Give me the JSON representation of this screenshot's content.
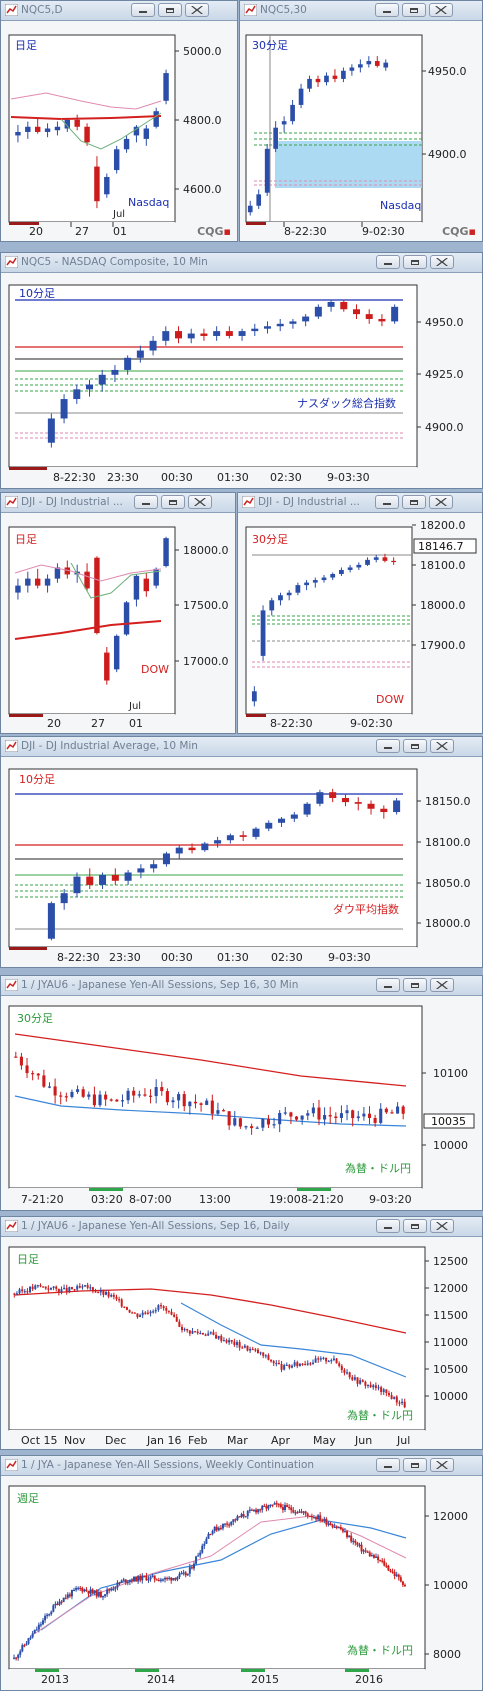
{
  "colors": {
    "up": "#2b4fa8",
    "down": "#cc1c1c",
    "pink": "#e08ab0",
    "green": "#3aa34a",
    "blue_line": "#1a2fb0",
    "red_line": "#d41f1f",
    "highlight": "#9fd3f1"
  },
  "brand": "CQG",
  "windows": [
    {
      "title": "NQC5,D",
      "label": "日足",
      "label_color": "#1a2fb0",
      "tag": "Nasdaq",
      "tag_color": "#1a2fb0"
    },
    {
      "title": "NQC5,30",
      "label": "30分足",
      "label_color": "#1a2fb0",
      "tag": "Nasdaq",
      "tag_color": "#1a2fb0"
    },
    {
      "title": "NQC5 - NASDAQ Composite, 10 Min",
      "label": "10分足",
      "label_color": "#1a2fb0",
      "tag": "ナスダック総合指数",
      "tag_color": "#1a2fb0"
    },
    {
      "title": "DJI - DJ Industrial ...",
      "label": "日足",
      "label_color": "#d41f1f",
      "tag": "DOW",
      "tag_color": "#d41f1f"
    },
    {
      "title": "DJI - DJ Industrial ...",
      "label": "30分足",
      "label_color": "#d41f1f",
      "tag": "DOW",
      "tag_color": "#d41f1f"
    },
    {
      "title": "DJI - DJ Industrial Average, 10 Min",
      "label": "10分足",
      "label_color": "#d41f1f",
      "tag": "ダウ平均指数",
      "tag_color": "#d41f1f"
    },
    {
      "title": "1 / JYAU6 - Japanese Yen-All Sessions, Sep 16, 30 Min",
      "label": "30分足",
      "label_color": "#2c9a3c",
      "tag": "為替・ドル円",
      "tag_color": "#2c9a3c"
    },
    {
      "title": "1 / JYAU6 - Japanese Yen-All Sessions, Sep 16, Daily",
      "label": "日足",
      "label_color": "#2c9a3c",
      "tag": "為替・ドル円",
      "tag_color": "#2c9a3c"
    },
    {
      "title": "1 / JYA - Japanese Yen-All Sessions, Weekly Continuation",
      "label": "週足",
      "label_color": "#2c9a3c",
      "tag": "為替・ドル円",
      "tag_color": "#2c9a3c"
    }
  ],
  "chart_data": [
    {
      "type": "candlestick",
      "title": "NQC5,D",
      "y_ticks": [
        "5000.0",
        "4800.0",
        "4600.0"
      ],
      "x_ticks": [
        "20",
        "27",
        "01"
      ],
      "x_sub": "Jul",
      "ylim": [
        4540,
        5080
      ],
      "ohlc": [
        [
          4790,
          4820,
          4770,
          4800
        ],
        [
          4800,
          4830,
          4780,
          4815
        ],
        [
          4815,
          4840,
          4795,
          4800
        ],
        [
          4800,
          4825,
          4785,
          4810
        ],
        [
          4805,
          4830,
          4790,
          4815
        ],
        [
          4810,
          4840,
          4800,
          4835
        ],
        [
          4835,
          4850,
          4805,
          4815
        ],
        [
          4815,
          4825,
          4760,
          4770
        ],
        [
          4700,
          4730,
          4580,
          4600
        ],
        [
          4620,
          4680,
          4610,
          4670
        ],
        [
          4690,
          4760,
          4680,
          4750
        ],
        [
          4750,
          4790,
          4740,
          4780
        ],
        [
          4790,
          4820,
          4770,
          4815
        ],
        [
          4780,
          4820,
          4760,
          4810
        ],
        [
          4815,
          4870,
          4810,
          4860
        ],
        [
          4890,
          4980,
          4880,
          4970
        ]
      ]
    },
    {
      "type": "candlestick",
      "title": "NQC5,30",
      "y_ticks": [
        "4950.0",
        "4900.0"
      ],
      "x_ticks": [
        "8-22:30",
        "9-02:30"
      ],
      "ylim": [
        4860,
        4975
      ],
      "ohlc": [
        [
          4866,
          4873,
          4864,
          4870
        ],
        [
          4870,
          4880,
          4868,
          4877
        ],
        [
          4878,
          4908,
          4876,
          4905
        ],
        [
          4905,
          4922,
          4903,
          4918
        ],
        [
          4920,
          4925,
          4915,
          4922
        ],
        [
          4922,
          4935,
          4920,
          4932
        ],
        [
          4932,
          4945,
          4930,
          4942
        ],
        [
          4942,
          4950,
          4940,
          4948
        ],
        [
          4948,
          4950,
          4943,
          4946
        ],
        [
          4946,
          4952,
          4944,
          4950
        ],
        [
          4950,
          4954,
          4946,
          4948
        ],
        [
          4948,
          4955,
          4946,
          4953
        ],
        [
          4953,
          4957,
          4950,
          4955
        ],
        [
          4955,
          4960,
          4952,
          4957
        ],
        [
          4957,
          4962,
          4955,
          4959
        ],
        [
          4959,
          4962,
          4955,
          4956
        ],
        [
          4955,
          4960,
          4953,
          4958
        ]
      ]
    },
    {
      "type": "candlestick",
      "title": "NQC5 - NASDAQ Composite, 10 Min",
      "y_ticks": [
        "4950.0",
        "4925.0",
        "4900.0"
      ],
      "x_ticks": [
        "8-22:30",
        "23:30",
        "00:30",
        "01:30",
        "02:30",
        "9-03:30"
      ],
      "ylim": [
        4890,
        4965
      ],
      "ohlc": [
        [
          4900,
          4912,
          4898,
          4910
        ],
        [
          4910,
          4920,
          4908,
          4918
        ],
        [
          4918,
          4924,
          4916,
          4922
        ],
        [
          4922,
          4926,
          4919,
          4924
        ],
        [
          4924,
          4930,
          4921,
          4928
        ],
        [
          4928,
          4932,
          4925,
          4930
        ],
        [
          4930,
          4936,
          4928,
          4935
        ],
        [
          4935,
          4940,
          4933,
          4938
        ],
        [
          4938,
          4944,
          4936,
          4942
        ],
        [
          4942,
          4948,
          4940,
          4946
        ],
        [
          4946,
          4948,
          4941,
          4943
        ],
        [
          4943,
          4947,
          4941,
          4945
        ],
        [
          4945,
          4947,
          4942,
          4944
        ],
        [
          4944,
          4948,
          4942,
          4946
        ],
        [
          4946,
          4948,
          4943,
          4944
        ],
        [
          4944,
          4947,
          4942,
          4946
        ],
        [
          4946,
          4949,
          4944,
          4947
        ],
        [
          4947,
          4950,
          4945,
          4948
        ],
        [
          4948,
          4951,
          4946,
          4949
        ],
        [
          4949,
          4951,
          4947,
          4950
        ],
        [
          4950,
          4953,
          4948,
          4952
        ],
        [
          4952,
          4957,
          4951,
          4956
        ],
        [
          4956,
          4959,
          4954,
          4958
        ],
        [
          4958,
          4959,
          4954,
          4955
        ],
        [
          4955,
          4957,
          4951,
          4953
        ],
        [
          4953,
          4955,
          4949,
          4951
        ],
        [
          4951,
          4953,
          4948,
          4950
        ],
        [
          4950,
          4957,
          4949,
          4956
        ]
      ]
    },
    {
      "type": "candlestick",
      "title": "DJI - DJ Industrial (daily)",
      "y_ticks": [
        "18000.0",
        "17500.0",
        "17000.0"
      ],
      "x_ticks": [
        "20",
        "27",
        "01"
      ],
      "x_sub": "Jul",
      "ylim": [
        16880,
        18220
      ],
      "ohlc": [
        [
          17750,
          17850,
          17700,
          17800
        ],
        [
          17800,
          17900,
          17750,
          17850
        ],
        [
          17850,
          17920,
          17780,
          17800
        ],
        [
          17800,
          17880,
          17750,
          17850
        ],
        [
          17850,
          17960,
          17820,
          17930
        ],
        [
          17930,
          17980,
          17850,
          17880
        ],
        [
          17880,
          17950,
          17820,
          17900
        ],
        [
          17900,
          17960,
          17760,
          17780
        ],
        [
          18000,
          18010,
          17450,
          17460
        ],
        [
          17320,
          17360,
          17090,
          17120
        ],
        [
          17200,
          17450,
          17180,
          17440
        ],
        [
          17450,
          17690,
          17440,
          17680
        ],
        [
          17700,
          17880,
          17650,
          17870
        ],
        [
          17850,
          17890,
          17720,
          17760
        ],
        [
          17800,
          17930,
          17780,
          17920
        ],
        [
          17940,
          18150,
          17930,
          18140
        ]
      ]
    },
    {
      "type": "candlestick",
      "title": "DJI - DJ Industrial (30 Min)",
      "y_ticks": [
        "18200.0",
        "18100.0",
        "18000.0",
        "17900.0"
      ],
      "x_ticks": [
        "8-22:30",
        "9-02:30"
      ],
      "last_value": "18146.7",
      "ylim": [
        17845,
        18215
      ],
      "ohlc": [
        [
          17870,
          17900,
          17860,
          17890
        ],
        [
          17960,
          18060,
          17950,
          18050
        ],
        [
          18050,
          18075,
          18040,
          18070
        ],
        [
          18070,
          18085,
          18060,
          18080
        ],
        [
          18080,
          18090,
          18070,
          18085
        ],
        [
          18085,
          18105,
          18080,
          18100
        ],
        [
          18100,
          18110,
          18090,
          18105
        ],
        [
          18105,
          18115,
          18095,
          18110
        ],
        [
          18110,
          18120,
          18105,
          18115
        ],
        [
          18115,
          18125,
          18110,
          18122
        ],
        [
          18122,
          18135,
          18118,
          18130
        ],
        [
          18130,
          18140,
          18125,
          18135
        ],
        [
          18135,
          18145,
          18130,
          18140
        ],
        [
          18140,
          18155,
          18138,
          18150
        ],
        [
          18150,
          18160,
          18145,
          18155
        ],
        [
          18155,
          18162,
          18145,
          18148
        ],
        [
          18148,
          18155,
          18140,
          18147
        ]
      ]
    },
    {
      "type": "candlestick",
      "title": "DJI - DJ Industrial Average, 10 Min",
      "y_ticks": [
        "18150.0",
        "18100.0",
        "18050.0",
        "18000.0"
      ],
      "x_ticks": [
        "8-22:30",
        "23:30",
        "00:30",
        "01:30",
        "02:30",
        "9-03:30"
      ],
      "ylim": [
        17975,
        18190
      ],
      "ohlc": [
        [
          17985,
          18030,
          17983,
          18028
        ],
        [
          18028,
          18045,
          18020,
          18040
        ],
        [
          18040,
          18065,
          18035,
          18060
        ],
        [
          18060,
          18070,
          18045,
          18050
        ],
        [
          18050,
          18065,
          18045,
          18062
        ],
        [
          18062,
          18070,
          18050,
          18055
        ],
        [
          18055,
          18068,
          18050,
          18065
        ],
        [
          18065,
          18075,
          18058,
          18070
        ],
        [
          18070,
          18080,
          18065,
          18075
        ],
        [
          18075,
          18090,
          18072,
          18088
        ],
        [
          18088,
          18098,
          18082,
          18095
        ],
        [
          18095,
          18100,
          18088,
          18092
        ],
        [
          18092,
          18102,
          18090,
          18100
        ],
        [
          18100,
          18108,
          18095,
          18104
        ],
        [
          18104,
          18112,
          18100,
          18110
        ],
        [
          18110,
          18115,
          18103,
          18108
        ],
        [
          18108,
          18120,
          18105,
          18118
        ],
        [
          18118,
          18128,
          18115,
          18125
        ],
        [
          18125,
          18132,
          18120,
          18130
        ],
        [
          18130,
          18138,
          18126,
          18135
        ],
        [
          18135,
          18150,
          18132,
          18148
        ],
        [
          18148,
          18165,
          18145,
          18162
        ],
        [
          18162,
          18166,
          18150,
          18155
        ],
        [
          18155,
          18160,
          18145,
          18150
        ],
        [
          18150,
          18156,
          18140,
          18148
        ],
        [
          18148,
          18152,
          18135,
          18142
        ],
        [
          18142,
          18146,
          18130,
          18138
        ],
        [
          18138,
          18155,
          18135,
          18152
        ]
      ]
    },
    {
      "type": "candlestick",
      "title": "1 / JYAU6 - 30 Min",
      "y_ticks": [
        "10100",
        "10000"
      ],
      "x_ticks": [
        "7-21:20",
        "03:20",
        "8-07:00",
        "13:00",
        "19:00",
        "8-21:20",
        "9-03:20"
      ],
      "last_value": "10035",
      "ylim": [
        9960,
        10140
      ]
    },
    {
      "type": "candlestick",
      "title": "1 / JYAU6 - Daily",
      "y_ticks": [
        "12500",
        "12000",
        "11500",
        "11000",
        "10500",
        "10000"
      ],
      "x_ticks": [
        "Oct 15",
        "Nov",
        "Dec",
        "Jan 16",
        "Feb",
        "Mar",
        "Apr",
        "May",
        "Jun",
        "Jul"
      ],
      "ylim": [
        9700,
        12650
      ]
    },
    {
      "type": "candlestick",
      "title": "1 / JYA - Weekly Continuation",
      "y_ticks": [
        "12000",
        "10000",
        "8000"
      ],
      "x_ticks": [
        "2013",
        "2014",
        "2015",
        "2016"
      ],
      "ylim": [
        7700,
        12900
      ]
    }
  ]
}
